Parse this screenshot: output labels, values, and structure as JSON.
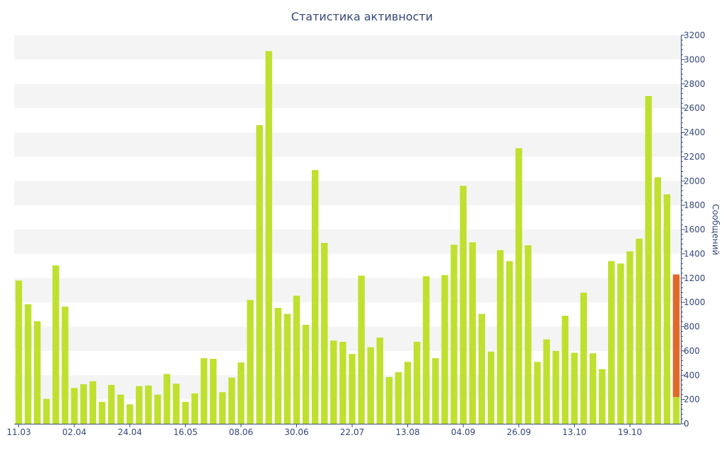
{
  "colors": {
    "bar": "#bfe02e",
    "highlight": "#e0692a",
    "band": "#f4f4f4",
    "axis": "#34477a",
    "text": "#34477a"
  },
  "chart_data": {
    "type": "bar",
    "title": "Статистика активности",
    "xlabel": "",
    "ylabel": "Сообщений",
    "ylim": [
      0,
      3200
    ],
    "y_ticks": [
      0,
      200,
      400,
      600,
      800,
      1000,
      1200,
      1400,
      1600,
      1800,
      2000,
      2200,
      2400,
      2600,
      2800,
      3000,
      3200
    ],
    "y_axis_position": "right",
    "grid": "alternating horizontal bands",
    "x_tick_labels": [
      {
        "index": 0,
        "label": "11.03"
      },
      {
        "index": 6,
        "label": "02.04"
      },
      {
        "index": 12,
        "label": "24.04"
      },
      {
        "index": 18,
        "label": "16.05"
      },
      {
        "index": 24,
        "label": "08.06"
      },
      {
        "index": 30,
        "label": "30.06"
      },
      {
        "index": 36,
        "label": "22.07"
      },
      {
        "index": 42,
        "label": "13.08"
      },
      {
        "index": 48,
        "label": "04.09"
      },
      {
        "index": 54,
        "label": "26.09"
      },
      {
        "index": 60,
        "label": "13.10"
      },
      {
        "index": 66,
        "label": "19.10"
      }
    ],
    "values": [
      1180,
      985,
      845,
      205,
      1305,
      965,
      295,
      325,
      350,
      180,
      320,
      240,
      160,
      310,
      315,
      240,
      410,
      330,
      180,
      250,
      540,
      535,
      260,
      380,
      505,
      1020,
      2460,
      3070,
      955,
      905,
      1055,
      815,
      2090,
      1490,
      685,
      675,
      575,
      1220,
      630,
      710,
      385,
      425,
      510,
      675,
      1215,
      540,
      1225,
      1475,
      1960,
      1495,
      905,
      595,
      1430,
      1340,
      2270,
      1470,
      510,
      695,
      600,
      890,
      585,
      1080,
      580,
      450,
      1340,
      1320,
      1420,
      1525,
      2700,
      2030,
      1890,
      220
    ],
    "highlight": {
      "index": 71,
      "stacked_value": 1010
    }
  }
}
